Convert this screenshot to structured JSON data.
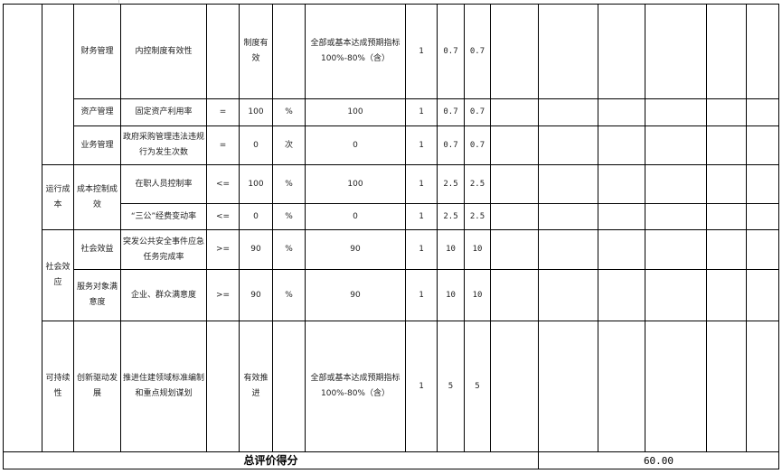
{
  "table": {
    "groups": [
      {
        "label": ""
      },
      {
        "label": "运行成本"
      },
      {
        "label": "社会效应"
      },
      {
        "label": "可持续性"
      }
    ],
    "rows": [
      {
        "category": "财务管理",
        "indicator": "内控制度有效性",
        "operator": "",
        "value": "制度有效",
        "unit": "",
        "target": "全部或基本达成预期指标 100%-80%（含）",
        "weight": "1",
        "score_a": "0.7",
        "score_b": "0.7"
      },
      {
        "category": "资产管理",
        "indicator": "固定资产利用率",
        "operator": "=",
        "value": "100",
        "unit": "%",
        "target": "100",
        "weight": "1",
        "score_a": "0.7",
        "score_b": "0.7"
      },
      {
        "category": "业务管理",
        "indicator": "政府采购管理违法违规行为发生次数",
        "operator": "=",
        "value": "0",
        "unit": "次",
        "target": "0",
        "weight": "1",
        "score_a": "0.7",
        "score_b": "0.7"
      },
      {
        "category": "成本控制成效",
        "indicator": "在职人员控制率",
        "operator": "<=",
        "value": "100",
        "unit": "%",
        "target": "100",
        "weight": "1",
        "score_a": "2.5",
        "score_b": "2.5"
      },
      {
        "category": "",
        "indicator": "“三公”经费变动率",
        "operator": "<=",
        "value": "0",
        "unit": "%",
        "target": "0",
        "weight": "1",
        "score_a": "2.5",
        "score_b": "2.5"
      },
      {
        "category": "社会效益",
        "indicator": "突发公共安全事件应急任务完成率",
        "operator": ">=",
        "value": "90",
        "unit": "%",
        "target": "90",
        "weight": "1",
        "score_a": "10",
        "score_b": "10"
      },
      {
        "category": "服务对象满意度",
        "indicator": "企业、群众满意度",
        "operator": ">=",
        "value": "90",
        "unit": "%",
        "target": "90",
        "weight": "1",
        "score_a": "10",
        "score_b": "10"
      },
      {
        "category": "创新驱动发展",
        "indicator": "推进住建领域标准编制和重点规划谋划",
        "operator": "",
        "value": "有效推进",
        "unit": "",
        "target": "全部或基本达成预期指标 100%-80%（含）",
        "weight": "1",
        "score_a": "5",
        "score_b": "5"
      }
    ],
    "total": {
      "label": "总评价得分",
      "value": "60.00"
    }
  }
}
